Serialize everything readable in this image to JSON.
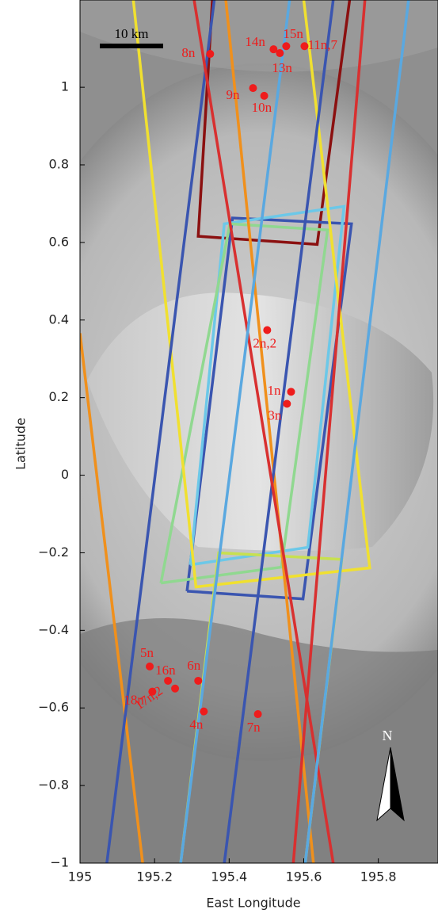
{
  "chart_data": {
    "type": "scatter",
    "xlabel": "East Longitude",
    "ylabel": "Latitude",
    "xlim": [
      195,
      195.96
    ],
    "ylim": [
      -1,
      1.225
    ],
    "xticks": [
      195,
      195.2,
      195.4,
      195.6,
      195.8
    ],
    "yticks": [
      {
        "value": -1,
        "label": "−1"
      },
      {
        "value": -0.8,
        "label": "−0.8"
      },
      {
        "value": -0.6,
        "label": "−0.6"
      },
      {
        "value": -0.4,
        "label": "−0.4"
      },
      {
        "value": -0.2,
        "label": "−0.2"
      },
      0,
      0.2,
      0.4,
      0.6,
      0.8,
      1
    ],
    "scale_label": "10 km",
    "north_label": "N",
    "point_color": "#ee1c1c",
    "labels": [
      "8n",
      "14n",
      "15n",
      "13n",
      "11n,7",
      "9n",
      "10n",
      "2n,2",
      "1n",
      "3n",
      "5n",
      "16n",
      "6n",
      "18n",
      "17n,2",
      "4n",
      "7n"
    ],
    "x": [
      195.349,
      195.519,
      195.553,
      195.536,
      195.602,
      195.464,
      195.494,
      195.502,
      195.566,
      195.555,
      195.187,
      195.236,
      195.317,
      195.194,
      195.255,
      195.332,
      195.477
    ],
    "y": [
      1.086,
      1.098,
      1.106,
      1.088,
      1.106,
      0.998,
      0.978,
      0.374,
      0.215,
      0.184,
      -0.493,
      -0.53,
      -0.53,
      -0.558,
      -0.55,
      -0.609,
      -0.616
    ],
    "footprints": [
      {
        "color": "#8b1010",
        "x": [
          195.355,
          195.317,
          195.636,
          195.723
        ],
        "y": [
          1.225,
          0.616,
          0.595,
          1.225
        ]
      },
      {
        "color": "#3a55b0",
        "x": [
          195.287,
          195.409,
          195.728,
          195.598,
          195.287
        ],
        "y": [
          -0.299,
          0.663,
          0.648,
          -0.319,
          -0.299
        ]
      },
      {
        "color": "#6cc8e8",
        "x": [
          195.296,
          195.387,
          195.708,
          195.611,
          195.296
        ],
        "y": [
          -0.231,
          0.648,
          0.693,
          -0.186,
          -0.231
        ]
      },
      {
        "color": "#90d890",
        "x": [
          195.217,
          195.402,
          195.664,
          195.54,
          195.217
        ],
        "y": [
          -0.278,
          0.648,
          0.632,
          -0.237,
          -0.278
        ]
      },
      {
        "color": "#f0e030",
        "x": [
          195.143,
          195.311,
          195.777,
          195.6
        ],
        "y": [
          1.225,
          -0.288,
          -0.239,
          1.225
        ]
      },
      {
        "color": "#c8e050",
        "x": [
          195.27,
          195.372,
          195.702,
          195.604
        ],
        "y": [
          -1,
          -0.2,
          -0.217,
          -1
        ]
      },
      {
        "color": "#f0901c",
        "x": [
          195.0,
          195.168
        ],
        "y": [
          0.366,
          -1
        ]
      },
      {
        "color": "#f0901c",
        "x": [
          195.391,
          195.626
        ],
        "y": [
          1.225,
          -1
        ]
      },
      {
        "color": "#3a55b0",
        "x": [
          195.36,
          195.072
        ],
        "y": [
          1.225,
          -1
        ]
      },
      {
        "color": "#3a55b0",
        "x": [
          195.679,
          195.387
        ],
        "y": [
          1.225,
          -1
        ]
      },
      {
        "color": "#d83030",
        "x": [
          195.306,
          195.679
        ],
        "y": [
          1.225,
          -1
        ]
      },
      {
        "color": "#d83030",
        "x": [
          195.764,
          195.572
        ],
        "y": [
          1.225,
          -1
        ]
      },
      {
        "color": "#5aa8e0",
        "x": [
          195.881,
          195.604
        ],
        "y": [
          1.225,
          -1
        ]
      },
      {
        "color": "#5aa8e0",
        "x": [
          195.562,
          195.27
        ],
        "y": [
          1.225,
          -1
        ]
      }
    ]
  }
}
